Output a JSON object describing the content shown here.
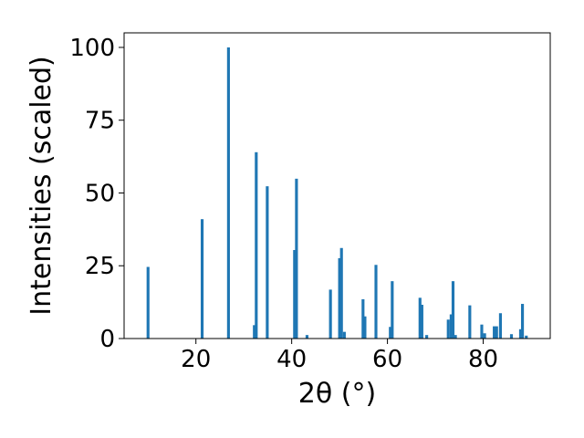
{
  "chart_data": {
    "type": "bar",
    "xlabel": "2θ (°)",
    "ylabel": "Intensities (scaled)",
    "xlim": [
      5,
      94
    ],
    "ylim": [
      0,
      105
    ],
    "x_ticks": [
      20,
      40,
      60,
      80
    ],
    "y_ticks": [
      0,
      25,
      50,
      75,
      100
    ],
    "bar_width": 0.6,
    "color": "#1f77b4",
    "grid": false,
    "series": [
      {
        "x": [
          10.0,
          21.3,
          26.8,
          32.2,
          32.6,
          34.9,
          40.6,
          41.0,
          43.2,
          48.1,
          50.0,
          50.4,
          51.0,
          54.9,
          55.3,
          57.6,
          60.6,
          61.0,
          66.8,
          67.2,
          68.2,
          72.7,
          73.3,
          73.7,
          74.2,
          77.2,
          79.7,
          80.3,
          82.3,
          82.8,
          83.6,
          85.9,
          87.8,
          88.2,
          89.0
        ],
        "values": [
          24.6,
          41.0,
          100.0,
          4.6,
          64.0,
          52.3,
          30.4,
          54.9,
          1.2,
          16.8,
          27.6,
          31.1,
          2.3,
          13.5,
          7.6,
          25.3,
          4.0,
          19.7,
          14.0,
          11.6,
          1.2,
          6.5,
          8.3,
          19.7,
          1.2,
          11.4,
          4.8,
          1.8,
          4.2,
          4.2,
          8.7,
          1.5,
          3.2,
          11.9,
          1.0
        ]
      }
    ]
  }
}
